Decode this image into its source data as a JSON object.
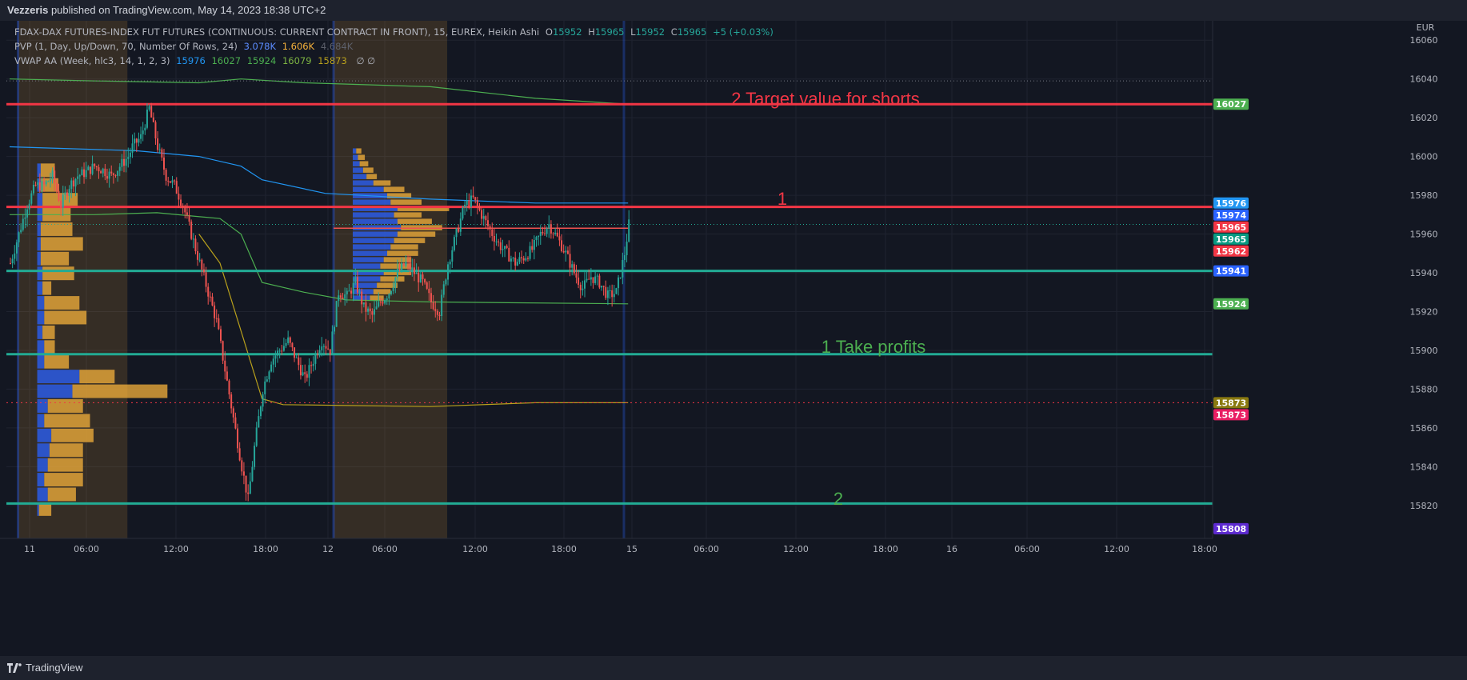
{
  "header": {
    "author": "Vezzeris",
    "text": "published on TradingView.com, May 14, 2023 18:38 UTC+2"
  },
  "footer": {
    "brand": "TradingView"
  },
  "legend": {
    "main": {
      "title": "FDAX-DAX FUTURES-INDEX FUT FUTURES (CONTINUOUS: CURRENT CONTRACT IN FRONT), 15, EUREX, Heikin Ashi",
      "o_label": "O",
      "o": "15952",
      "h_label": "H",
      "h": "15965",
      "l_label": "L",
      "l": "15952",
      "c_label": "C",
      "c": "15965",
      "change": "+5 (+0.03%)"
    },
    "pvp": {
      "title": "PVP (1, Day, Up/Down, 70, Number Of Rows, 24)",
      "v1": "3.078K",
      "v2": "1.606K",
      "v3": "4.684K"
    },
    "vwap": {
      "title": "VWAP AA (Week, hlc3, 14, 1, 2, 3)",
      "v1": "15976",
      "v2": "16027",
      "v3": "15924",
      "v4": "16079",
      "v5": "15873",
      "tail": "∅ ∅"
    }
  },
  "colors": {
    "background": "#131722",
    "bull": "#26a69a",
    "bear": "#ef5350",
    "red_line": "#f23645",
    "teal_line": "#22ab94",
    "green_text": "#4caf50",
    "vwap_blue": "#2196f3",
    "vwap_green": "#4caf50",
    "vwap_gold": "#b8a01c",
    "profile_up": "#2962ff",
    "profile_down": "#f5b13b",
    "session_bg": "#f5b13b"
  },
  "chart_data": {
    "type": "candlestick",
    "timeframe": "15",
    "currency": "EUR",
    "ylim": [
      15803,
      16070
    ],
    "y_ticks": [
      16060,
      16040,
      16020,
      16000,
      15980,
      15960,
      15940,
      15920,
      15900,
      15880,
      15860,
      15840,
      15820
    ],
    "x_ticks": [
      "11",
      "06:00",
      "12:00",
      "18:00",
      "12",
      "06:00",
      "12:00",
      "18:00",
      "15",
      "06:00",
      "12:00",
      "18:00",
      "16",
      "06:00",
      "12:00",
      "18:00"
    ],
    "annotations": [
      {
        "text": "2 Target value for shorts",
        "price": 16027,
        "color": "red"
      },
      {
        "text": "1",
        "price": 15974,
        "color": "red"
      },
      {
        "text": "1   Take profits",
        "price": 15898,
        "color": "green"
      },
      {
        "text": "2",
        "price": 15821,
        "color": "green"
      }
    ],
    "horizontal_lines": [
      {
        "price": 16027,
        "color": "red",
        "style": "thick"
      },
      {
        "price": 15974,
        "color": "red",
        "style": "thick"
      },
      {
        "price": 15941,
        "color": "teal",
        "style": "thick"
      },
      {
        "price": 15898,
        "color": "teal",
        "style": "thick"
      },
      {
        "price": 15821,
        "color": "teal",
        "style": "thick"
      },
      {
        "price": 15873,
        "color": "red",
        "style": "dotted"
      },
      {
        "price": 16039,
        "color": "grey",
        "style": "dotted"
      },
      {
        "price": 15965,
        "color": "teal",
        "style": "dotted"
      }
    ],
    "price_badges": [
      {
        "price": 16027,
        "label": "16027",
        "color": "#4caf50"
      },
      {
        "price": 15976,
        "label": "15976",
        "color": "#2196f3"
      },
      {
        "price": 15974,
        "label": "15974",
        "color": "#2962ff"
      },
      {
        "price": 15965,
        "label": "15965",
        "color": "#f23645"
      },
      {
        "price": 15965,
        "label": "15965",
        "color": "#089981"
      },
      {
        "price": 15962,
        "label": "15962",
        "color": "#f23645"
      },
      {
        "price": 15941,
        "label": "15941",
        "color": "#2962ff"
      },
      {
        "price": 15924,
        "label": "15924",
        "color": "#4caf50"
      },
      {
        "price": 15873,
        "label": "15873",
        "color": "#8a7a10"
      },
      {
        "price": 15873,
        "label": "15873",
        "color": "#e91e63"
      },
      {
        "price": 15808,
        "label": "15808",
        "color": "#5e2bd1"
      }
    ],
    "close_path": [
      [
        0,
        15945
      ],
      [
        4,
        15960
      ],
      [
        8,
        15975
      ],
      [
        12,
        15985
      ],
      [
        16,
        15985
      ],
      [
        20,
        15990
      ],
      [
        24,
        15975
      ],
      [
        28,
        15985
      ],
      [
        32,
        15990
      ],
      [
        36,
        15992
      ],
      [
        40,
        15995
      ],
      [
        44,
        15993
      ],
      [
        48,
        15990
      ],
      [
        52,
        15995
      ],
      [
        56,
        16000
      ],
      [
        58,
        16005
      ],
      [
        62,
        16010
      ],
      [
        66,
        16025
      ],
      [
        70,
        16005
      ],
      [
        74,
        15990
      ],
      [
        78,
        15985
      ],
      [
        82,
        15975
      ],
      [
        86,
        15960
      ],
      [
        90,
        15945
      ],
      [
        94,
        15930
      ],
      [
        98,
        15915
      ],
      [
        102,
        15890
      ],
      [
        106,
        15865
      ],
      [
        110,
        15840
      ],
      [
        113,
        15823
      ],
      [
        116,
        15850
      ],
      [
        120,
        15880
      ],
      [
        124,
        15895
      ],
      [
        128,
        15900
      ],
      [
        132,
        15905
      ],
      [
        136,
        15895
      ],
      [
        140,
        15885
      ],
      [
        144,
        15895
      ],
      [
        148,
        15905
      ],
      [
        152,
        15900
      ],
      [
        156,
        15930
      ],
      [
        160,
        15928
      ],
      [
        164,
        15935
      ],
      [
        168,
        15922
      ],
      [
        172,
        15918
      ],
      [
        176,
        15925
      ],
      [
        180,
        15930
      ],
      [
        184,
        15940
      ],
      [
        188,
        15945
      ],
      [
        192,
        15940
      ],
      [
        196,
        15935
      ],
      [
        200,
        15925
      ],
      [
        204,
        15920
      ],
      [
        208,
        15945
      ],
      [
        212,
        15960
      ],
      [
        216,
        15975
      ],
      [
        220,
        15978
      ],
      [
        224,
        15970
      ],
      [
        228,
        15962
      ],
      [
        232,
        15955
      ],
      [
        236,
        15950
      ],
      [
        240,
        15945
      ],
      [
        244,
        15948
      ],
      [
        248,
        15952
      ],
      [
        252,
        15960
      ],
      [
        256,
        15965
      ],
      [
        260,
        15958
      ],
      [
        264,
        15950
      ],
      [
        268,
        15940
      ],
      [
        272,
        15932
      ],
      [
        276,
        15938
      ],
      [
        280,
        15935
      ],
      [
        284,
        15928
      ],
      [
        288,
        15930
      ],
      [
        292,
        15950
      ],
      [
        294,
        15965
      ]
    ],
    "series": [
      {
        "name": "VWAP AA (Week) 15976",
        "color": "#2196f3",
        "points": [
          [
            0,
            16005
          ],
          [
            60,
            16003
          ],
          [
            90,
            16000
          ],
          [
            110,
            15995
          ],
          [
            120,
            15988
          ],
          [
            150,
            15981
          ],
          [
            200,
            15978
          ],
          [
            250,
            15976
          ],
          [
            294,
            15976
          ]
        ]
      },
      {
        "name": "VWAP AA upper 16027",
        "color": "#4caf50",
        "points": [
          [
            0,
            16040
          ],
          [
            40,
            16039
          ],
          [
            90,
            16038
          ],
          [
            110,
            16040
          ],
          [
            140,
            16038
          ],
          [
            200,
            16036
          ],
          [
            250,
            16030
          ],
          [
            294,
            16027
          ]
        ]
      },
      {
        "name": "VWAP AA 15924",
        "color": "#4caf50",
        "points": [
          [
            0,
            15970
          ],
          [
            40,
            15970
          ],
          [
            70,
            15971
          ],
          [
            100,
            15968
          ],
          [
            110,
            15960
          ],
          [
            120,
            15935
          ],
          [
            140,
            15930
          ],
          [
            160,
            15926
          ],
          [
            200,
            15925
          ],
          [
            294,
            15924
          ]
        ]
      },
      {
        "name": "VWAP AA lower 15873",
        "color": "#b8a01c",
        "points": [
          [
            90,
            15960
          ],
          [
            100,
            15945
          ],
          [
            110,
            15910
          ],
          [
            120,
            15875
          ],
          [
            130,
            15872
          ],
          [
            200,
            15871
          ],
          [
            250,
            15873
          ],
          [
            294,
            15873
          ]
        ]
      }
    ],
    "volume_profiles": [
      {
        "session": "11",
        "bar_start": 4,
        "bar_end": 56,
        "row_low": 15814,
        "row_height": 7.6,
        "rows": [
          {
            "up": 0.05,
            "down": 0.35
          },
          {
            "up": 0.3,
            "down": 0.8
          },
          {
            "up": 0.2,
            "down": 1.1
          },
          {
            "up": 0.3,
            "down": 1.0
          },
          {
            "up": 0.35,
            "down": 0.95
          },
          {
            "up": 0.4,
            "down": 1.2
          },
          {
            "up": 0.2,
            "down": 1.3
          },
          {
            "up": 0.3,
            "down": 1.0
          },
          {
            "up": 1.0,
            "down": 2.7
          },
          {
            "up": 1.2,
            "down": 1.0
          },
          {
            "up": 0.2,
            "down": 0.7
          },
          {
            "up": 0.2,
            "down": 0.3
          },
          {
            "up": 0.15,
            "down": 0.35
          },
          {
            "up": 0.2,
            "down": 1.2
          },
          {
            "up": 0.2,
            "down": 1.0
          },
          {
            "up": 0.15,
            "down": 0.25
          },
          {
            "up": 0.15,
            "down": 0.9
          },
          {
            "up": 0.1,
            "down": 0.8
          },
          {
            "up": 0.1,
            "down": 1.2
          },
          {
            "up": 0.1,
            "down": 0.9
          },
          {
            "up": 0.15,
            "down": 0.8
          },
          {
            "up": 0.15,
            "down": 1.0
          },
          {
            "up": 0.1,
            "down": 0.5
          },
          {
            "up": 0.1,
            "down": 0.4
          }
        ]
      },
      {
        "session": "12",
        "bar_start": 154,
        "bar_end": 208,
        "row_low": 15925,
        "row_height": 3.3,
        "rows": [
          {
            "up": 0.5,
            "down": 0.4
          },
          {
            "up": 0.6,
            "down": 0.5
          },
          {
            "up": 0.7,
            "down": 0.6
          },
          {
            "up": 0.8,
            "down": 0.7
          },
          {
            "up": 0.9,
            "down": 0.8
          },
          {
            "up": 0.8,
            "down": 0.9
          },
          {
            "up": 0.9,
            "down": 0.8
          },
          {
            "up": 1.0,
            "down": 0.9
          },
          {
            "up": 1.1,
            "down": 0.8
          },
          {
            "up": 1.2,
            "down": 0.9
          },
          {
            "up": 1.3,
            "down": 1.1
          },
          {
            "up": 1.4,
            "down": 1.2
          },
          {
            "up": 1.3,
            "down": 1.0
          },
          {
            "up": 1.2,
            "down": 0.8
          },
          {
            "up": 1.3,
            "down": 1.5
          },
          {
            "up": 1.1,
            "down": 0.9
          },
          {
            "up": 1.0,
            "down": 0.7
          },
          {
            "up": 0.9,
            "down": 0.6
          },
          {
            "up": 0.6,
            "down": 0.5
          },
          {
            "up": 0.4,
            "down": 0.3
          },
          {
            "up": 0.3,
            "down": 0.3
          },
          {
            "up": 0.2,
            "down": 0.25
          },
          {
            "up": 0.15,
            "down": 0.2
          },
          {
            "up": 0.1,
            "down": 0.15
          }
        ]
      }
    ],
    "session_shading": [
      {
        "from_bar": 4,
        "to_bar": 56
      },
      {
        "from_bar": 154,
        "to_bar": 208
      }
    ],
    "poc_levels": [
      {
        "price": 15963,
        "from_bar": 154,
        "to_bar": 294,
        "color": "#ef5350"
      }
    ]
  }
}
